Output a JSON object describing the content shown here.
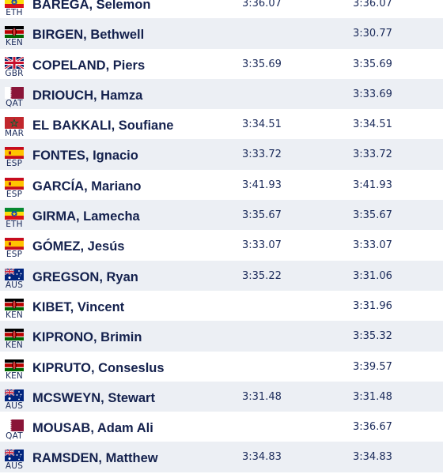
{
  "athletes": [
    {
      "flag": "eth",
      "country": "ETH",
      "name": "BAREGA, Selemon",
      "season_best": "3:36.07",
      "personal_best": "3:36.07"
    },
    {
      "flag": "ken",
      "country": "KEN",
      "name": "BIRGEN, Bethwell",
      "season_best": "",
      "personal_best": "3:30.77"
    },
    {
      "flag": "gbr",
      "country": "GBR",
      "name": "COPELAND, Piers",
      "season_best": "3:35.69",
      "personal_best": "3:35.69"
    },
    {
      "flag": "qat",
      "country": "QAT",
      "name": "DRIOUCH, Hamza",
      "season_best": "",
      "personal_best": "3:33.69"
    },
    {
      "flag": "mar",
      "country": "MAR",
      "name": "EL BAKKALI, Soufiane",
      "season_best": "3:34.51",
      "personal_best": "3:34.51"
    },
    {
      "flag": "esp",
      "country": "ESP",
      "name": "FONTES, Ignacio",
      "season_best": "3:33.72",
      "personal_best": "3:33.72"
    },
    {
      "flag": "esp",
      "country": "ESP",
      "name": "GARCÍA, Mariano",
      "season_best": "3:41.93",
      "personal_best": "3:41.93"
    },
    {
      "flag": "eth",
      "country": "ETH",
      "name": "GIRMA, Lamecha",
      "season_best": "3:35.67",
      "personal_best": "3:35.67"
    },
    {
      "flag": "esp",
      "country": "ESP",
      "name": "GÓMEZ, Jesús",
      "season_best": "3:33.07",
      "personal_best": "3:33.07"
    },
    {
      "flag": "aus",
      "country": "AUS",
      "name": "GREGSON, Ryan",
      "season_best": "3:35.22",
      "personal_best": "3:31.06"
    },
    {
      "flag": "ken",
      "country": "KEN",
      "name": "KIBET, Vincent",
      "season_best": "",
      "personal_best": "3:31.96"
    },
    {
      "flag": "ken",
      "country": "KEN",
      "name": "KIPRONO, Brimin",
      "season_best": "",
      "personal_best": "3:35.32"
    },
    {
      "flag": "ken",
      "country": "KEN",
      "name": "KIPRUTO, Conseslus",
      "season_best": "",
      "personal_best": "3:39.57"
    },
    {
      "flag": "aus",
      "country": "AUS",
      "name": "MCSWEYN, Stewart",
      "season_best": "3:31.48",
      "personal_best": "3:31.48"
    },
    {
      "flag": "qat",
      "country": "QAT",
      "name": "MOUSAB, Adam Ali",
      "season_best": "",
      "personal_best": "3:36.67"
    },
    {
      "flag": "aus",
      "country": "AUS",
      "name": "RAMSDEN, Matthew",
      "season_best": "3:34.83",
      "personal_best": "3:34.83"
    }
  ],
  "colors": {
    "row_alt": "#eceff4",
    "text": "#14214d"
  }
}
